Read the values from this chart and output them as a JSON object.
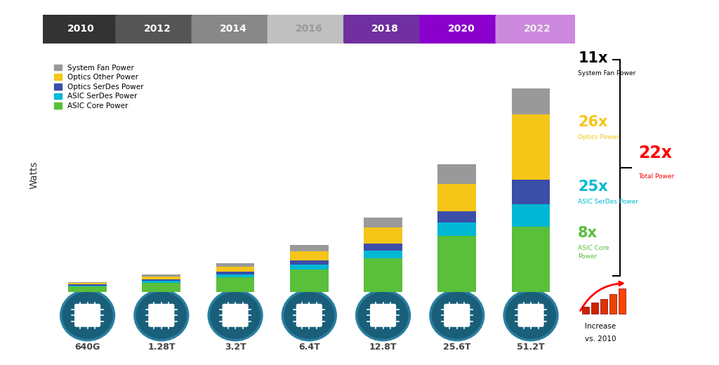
{
  "categories": [
    "640G",
    "1.28T",
    "3.2T",
    "6.4T",
    "12.8T",
    "25.6T",
    "51.2T"
  ],
  "years": [
    "2010",
    "2012",
    "2014",
    "2016",
    "2018",
    "2020",
    "2022"
  ],
  "year_colors": [
    "#333333",
    "#555555",
    "#888888",
    "#c0c0c0",
    "#7030a0",
    "#8b00cc",
    "#cc88dd"
  ],
  "year_text_colors": [
    "#ffffff",
    "#ffffff",
    "#ffffff",
    "#999999",
    "#ffffff",
    "#ffffff",
    "#eeeeee"
  ],
  "asic_core": [
    12,
    20,
    32,
    48,
    72,
    120,
    140
  ],
  "asic_serdes": [
    2,
    4,
    6,
    10,
    16,
    28,
    48
  ],
  "optics_serdes": [
    2,
    3,
    5,
    9,
    15,
    25,
    52
  ],
  "optics_other": [
    3,
    6,
    11,
    20,
    35,
    58,
    140
  ],
  "system_fan": [
    2,
    4,
    8,
    14,
    22,
    42,
    55
  ],
  "colors": {
    "asic_core": "#5abf3a",
    "asic_serdes": "#00b8d4",
    "optics_serdes": "#3b4ea8",
    "optics_other": "#f5c518",
    "system_fan": "#999999"
  },
  "ylabel": "Watts",
  "bg_color": "#ffffff",
  "chip_color": "#1a5f7a",
  "chip_ring_color": "#2980b9"
}
